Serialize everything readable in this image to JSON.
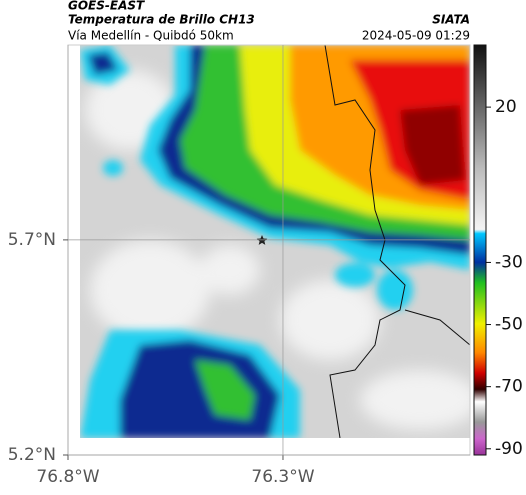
{
  "header": {
    "source": "GOES-EAST",
    "title": "Temperatura de Brillo CH13",
    "subtitle": "Vía Medellín - Quibdó 50km",
    "agency": "SIATA",
    "datetime": "2024-05-09 01:29"
  },
  "map": {
    "lonlim": [
      -76.8,
      -75.865
    ],
    "latlim": [
      5.2,
      6.153
    ],
    "xticks": [
      {
        "value": -76.8,
        "label": "76.8°W"
      },
      {
        "value": -76.3,
        "label": "76.3°W"
      }
    ],
    "yticks": [
      {
        "value": 5.2,
        "label": "5.2°N"
      },
      {
        "value": 5.7,
        "label": "5.7°N"
      }
    ],
    "grid": true
  },
  "colorbar": {
    "lim": [
      -92,
      40
    ],
    "ticks": [
      20,
      -30,
      -50,
      -70,
      -90
    ]
  }
}
